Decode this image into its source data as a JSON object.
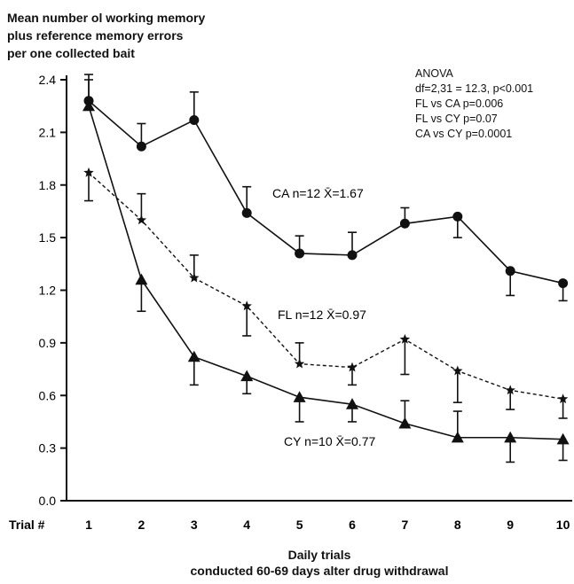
{
  "y_title_lines": [
    "Mean number ol working memory",
    "plus reference memory errors",
    "per one collected bait"
  ],
  "x_title_lines": [
    "Daily trials",
    "conducted 60-69 days alter drug withdrawal"
  ],
  "trial_label": "Trial #",
  "anova_lines": [
    "ANOVA",
    "df=2,31 = 12.3, p<0.001",
    "FL vs CA  p=0.006",
    "FL vs CY  p=0.07",
    "CA vs CY  p=0.0001"
  ],
  "chart_data": {
    "type": "line",
    "xlabel": "Daily trials conducted 60-69 days alter drug withdrawal",
    "ylabel": "Mean number ol working memory plus reference memory errors per one collected bait",
    "x": [
      1,
      2,
      3,
      4,
      5,
      6,
      7,
      8,
      9,
      10
    ],
    "x_tick_labels": [
      "1",
      "2",
      "3",
      "4",
      "5",
      "6",
      "7",
      "8",
      "9",
      "10"
    ],
    "y_ticks": [
      "0.0",
      "0.3",
      "0.6",
      "0.9",
      "1.2",
      "1.5",
      "1.8",
      "2.1",
      "2.4"
    ],
    "ylim": [
      0,
      2.4
    ],
    "grid": false,
    "series": [
      {
        "name": "CA  n=12  X̄=1.67",
        "marker": "circle",
        "line_style": "solid",
        "values": [
          2.28,
          2.02,
          2.17,
          1.64,
          1.41,
          1.4,
          1.58,
          1.62,
          1.31,
          1.24
        ],
        "error_upper": [
          0.15,
          0.13,
          0.16,
          0.15,
          0.1,
          0.13,
          0.09,
          0.0,
          0.0,
          0.0
        ],
        "error_lower": [
          0.0,
          0.0,
          0.0,
          0.0,
          0.0,
          0.0,
          0.0,
          0.12,
          0.14,
          0.1
        ]
      },
      {
        "name": "FL  n=12  X̄=0.97",
        "marker": "star",
        "line_style": "dashed",
        "values": [
          1.87,
          1.6,
          1.27,
          1.11,
          0.78,
          0.76,
          0.92,
          0.74,
          0.63,
          0.58
        ],
        "error_upper": [
          0.0,
          0.15,
          0.13,
          0.0,
          0.12,
          0.0,
          0.0,
          0.0,
          0.0,
          0.0
        ],
        "error_lower": [
          0.16,
          0.0,
          0.0,
          0.17,
          0.0,
          0.1,
          0.2,
          0.18,
          0.11,
          0.11
        ]
      },
      {
        "name": "CY  n=10  X̄=0.77",
        "marker": "triangle",
        "line_style": "solid",
        "values": [
          2.25,
          1.26,
          0.82,
          0.71,
          0.59,
          0.55,
          0.44,
          0.36,
          0.36,
          0.35
        ],
        "error_upper": [
          0.15,
          0.0,
          0.0,
          0.0,
          0.0,
          0.0,
          0.13,
          0.15,
          0.0,
          0.0
        ],
        "error_lower": [
          0.0,
          0.18,
          0.16,
          0.1,
          0.14,
          0.1,
          0.0,
          0.0,
          0.14,
          0.12
        ]
      }
    ]
  }
}
